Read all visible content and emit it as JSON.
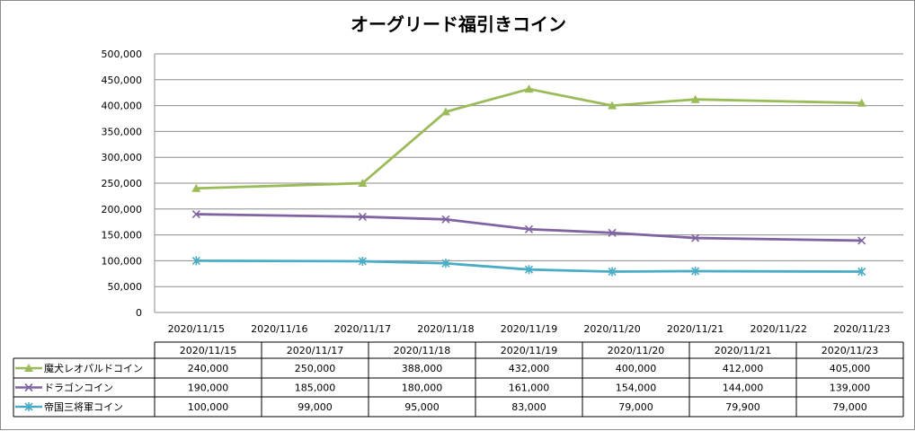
{
  "chart_data": {
    "type": "line",
    "title": "オーグリード福引きコイン",
    "x": [
      "2020/11/15",
      "2020/11/17",
      "2020/11/18",
      "2020/11/19",
      "2020/11/20",
      "2020/11/21",
      "2020/11/23"
    ],
    "x_axis_labels": [
      "2020/11/15",
      "2020/11/16",
      "2020/11/17",
      "2020/11/18",
      "2020/11/19",
      "2020/11/20",
      "2020/11/21",
      "2020/11/22",
      "2020/11/23"
    ],
    "y_ticks": [
      "0",
      "50,000",
      "100,000",
      "150,000",
      "200,000",
      "250,000",
      "300,000",
      "350,000",
      "400,000",
      "450,000",
      "500,000"
    ],
    "ylim": [
      0,
      500000
    ],
    "grid": true,
    "legend": "data-table",
    "series": [
      {
        "name": "魔犬レオパルドコイン",
        "color": "#9bbb59",
        "marker": "triangle",
        "values": [
          240000,
          250000,
          388000,
          432000,
          400000,
          412000,
          405000
        ],
        "labels": [
          "240,000",
          "250,000",
          "388,000",
          "432,000",
          "400,000",
          "412,000",
          "405,000"
        ]
      },
      {
        "name": "ドラゴンコイン",
        "color": "#8064a2",
        "marker": "x",
        "values": [
          190000,
          185000,
          180000,
          161000,
          154000,
          144000,
          139000
        ],
        "labels": [
          "190,000",
          "185,000",
          "180,000",
          "161,000",
          "154,000",
          "144,000",
          "139,000"
        ]
      },
      {
        "name": "帝国三将軍コイン",
        "color": "#4bacc6",
        "marker": "star",
        "values": [
          100000,
          99000,
          95000,
          83000,
          79000,
          79900,
          79000
        ],
        "labels": [
          "100,000",
          "99,000",
          "95,000",
          "83,000",
          "79,000",
          "79,900",
          "79,000"
        ]
      }
    ]
  }
}
